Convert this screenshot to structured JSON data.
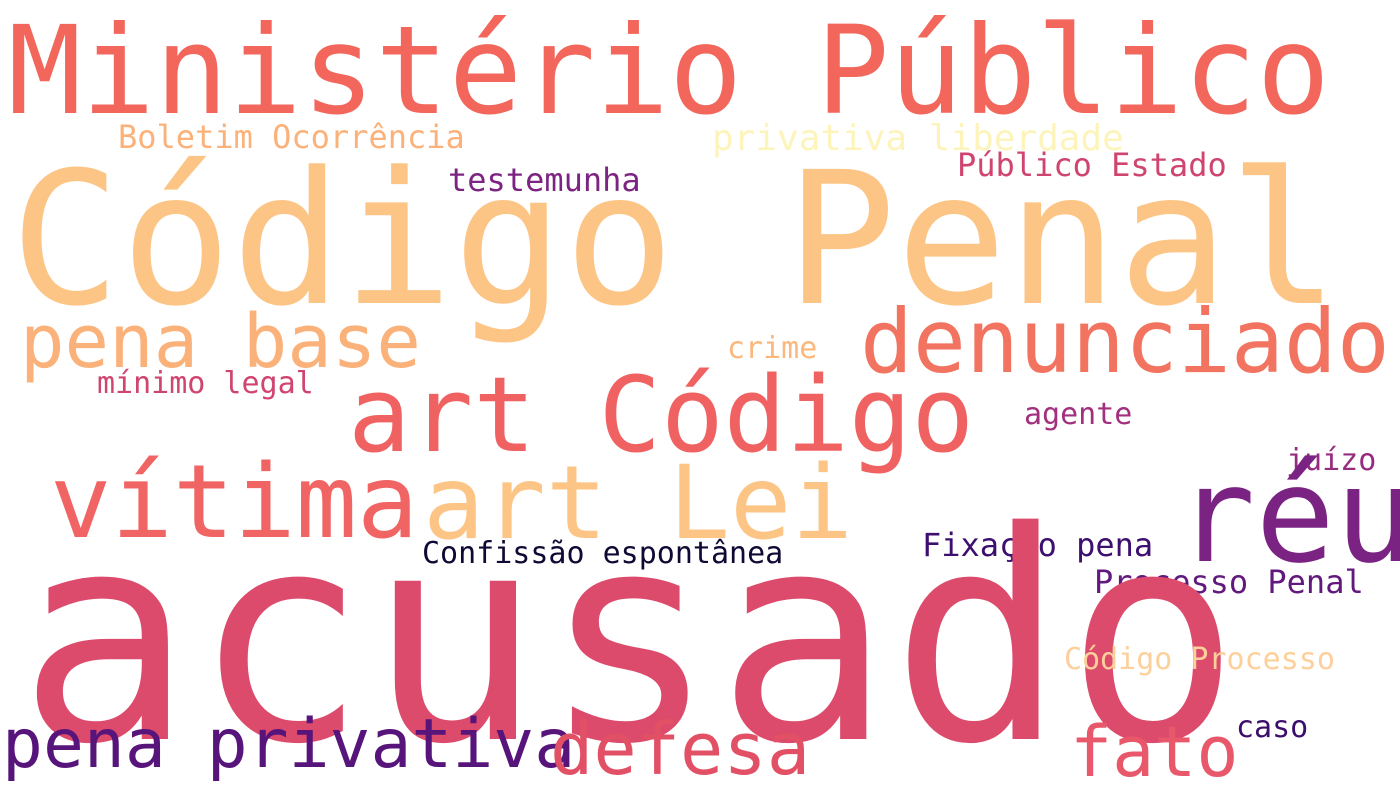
{
  "words": [
    {
      "text": "Ministério Público",
      "color": "#f2665c"
    },
    {
      "text": "Código Penal",
      "color": "#fdc585"
    },
    {
      "text": "Boletim Ocorrência",
      "color": "#fbb27a"
    },
    {
      "text": "privativa liberdade",
      "color": "#fdf4bb"
    },
    {
      "text": "Público Estado",
      "color": "#d0456f"
    },
    {
      "text": "testemunha",
      "color": "#7c2482"
    },
    {
      "text": "pena base",
      "color": "#fbb27a"
    },
    {
      "text": "denunciado",
      "color": "#f2735f"
    },
    {
      "text": "crime",
      "color": "#fcb77d"
    },
    {
      "text": "mínimo legal",
      "color": "#d0456f"
    },
    {
      "text": "art Código",
      "color": "#f06262"
    },
    {
      "text": "agente",
      "color": "#a2307e"
    },
    {
      "text": "juízo",
      "color": "#962c7f"
    },
    {
      "text": "vítima",
      "color": "#f06564"
    },
    {
      "text": "art Lei",
      "color": "#fdc585"
    },
    {
      "text": "réu",
      "color": "#7a2382"
    },
    {
      "text": "Fixação pena",
      "color": "#3d0f6f"
    },
    {
      "text": "Confissão espontânea",
      "color": "#0f0934"
    },
    {
      "text": "Processo Penal",
      "color": "#62197d"
    },
    {
      "text": "acusado",
      "color": "#dc4b6c"
    },
    {
      "text": "Código Processo",
      "color": "#fdd09b"
    },
    {
      "text": "pena privativa",
      "color": "#57157c"
    },
    {
      "text": "defesa",
      "color": "#e25065"
    },
    {
      "text": "fato",
      "color": "#e8576a"
    },
    {
      "text": "caso",
      "color": "#3c0e6b"
    }
  ]
}
